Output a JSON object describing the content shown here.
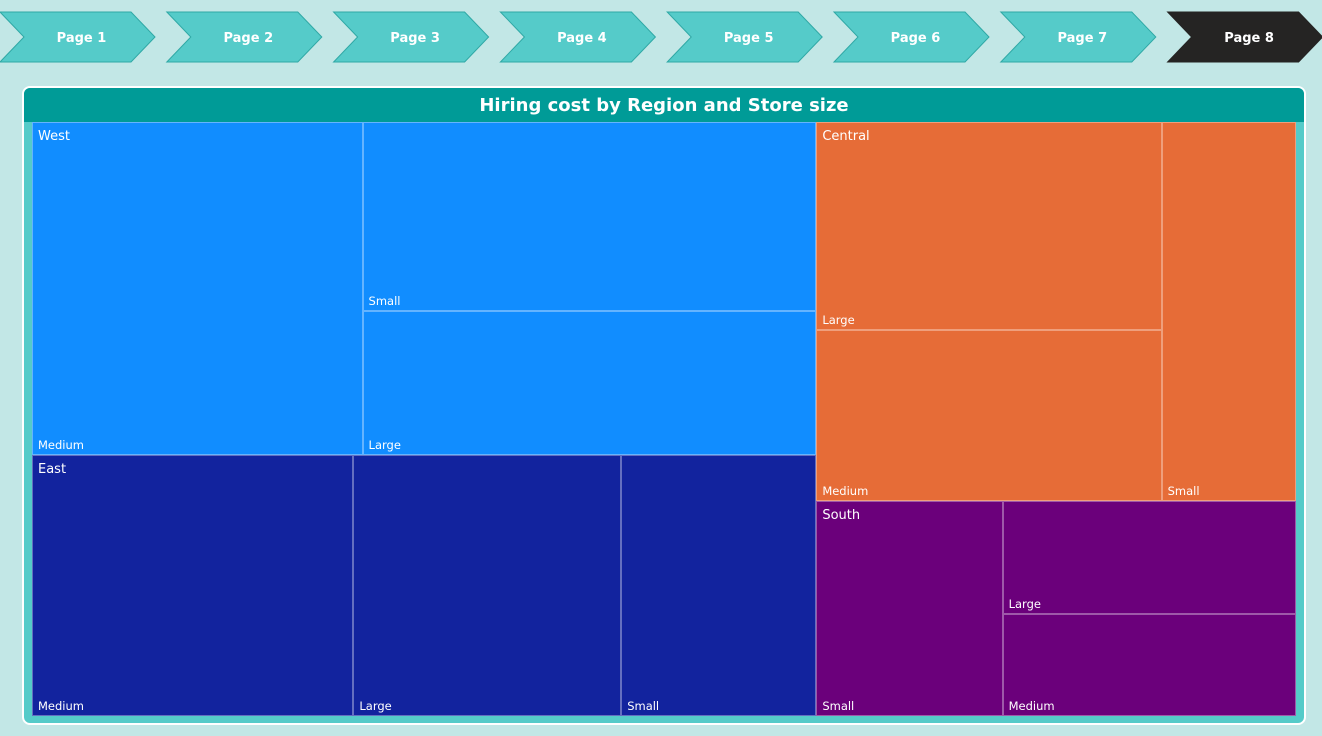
{
  "nav": {
    "pages": [
      {
        "label": "Page 1",
        "active": false
      },
      {
        "label": "Page 2",
        "active": false
      },
      {
        "label": "Page 3",
        "active": false
      },
      {
        "label": "Page 4",
        "active": false
      },
      {
        "label": "Page 5",
        "active": false
      },
      {
        "label": "Page 6",
        "active": false
      },
      {
        "label": "Page 7",
        "active": false
      },
      {
        "label": "Page 8",
        "active": true
      }
    ],
    "colors": {
      "inactive": "#55cbc9",
      "active": "#252423",
      "inactive_text": "#ffffff",
      "active_text": "#ffffff"
    }
  },
  "chart_data": {
    "type": "treemap",
    "title": "Hiring cost by Region and Store size",
    "groups": [
      {
        "name": "West",
        "color": "#118dff",
        "children": [
          {
            "name": "Medium",
            "value": 110
          },
          {
            "name": "Small",
            "value": 86
          },
          {
            "name": "Large",
            "value": 65
          }
        ]
      },
      {
        "name": "East",
        "color": "#12239e",
        "children": [
          {
            "name": "Medium",
            "value": 84
          },
          {
            "name": "Large",
            "value": 70
          },
          {
            "name": "Small",
            "value": 51
          }
        ]
      },
      {
        "name": "Central",
        "color": "#e66c37",
        "children": [
          {
            "name": "Large",
            "value": 72
          },
          {
            "name": "Medium",
            "value": 59
          },
          {
            "name": "Small",
            "value": 51
          }
        ]
      },
      {
        "name": "South",
        "color": "#6b007b",
        "children": [
          {
            "name": "Small",
            "value": 40
          },
          {
            "name": "Large",
            "value": 33
          },
          {
            "name": "Medium",
            "value": 30
          }
        ]
      }
    ]
  }
}
